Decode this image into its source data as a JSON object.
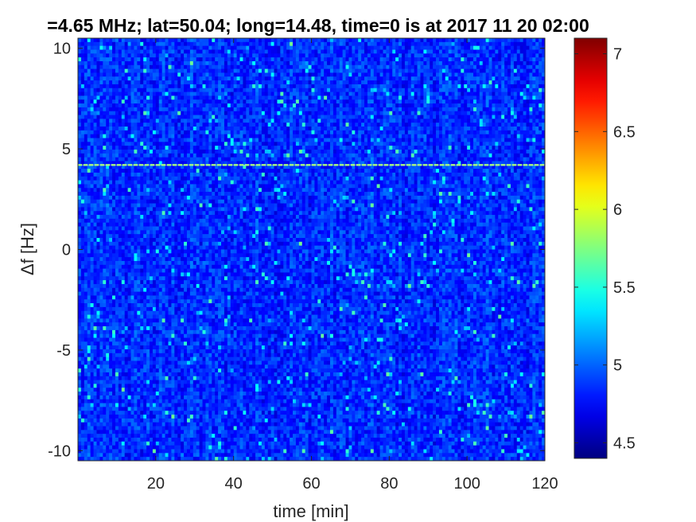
{
  "chart_data": {
    "type": "heatmap",
    "title": "=4.65 MHz;  lat=50.04; long=14.48, time=0 is at 2017 11 20 02:00",
    "xlabel": "time [min]",
    "ylabel": "Δf [Hz]",
    "xlim": [
      0,
      120
    ],
    "ylim": [
      -10.5,
      10.5
    ],
    "xticks": [
      20,
      40,
      60,
      80,
      100,
      120
    ],
    "yticks": [
      10,
      5,
      0,
      -5,
      -10
    ],
    "colorbar": {
      "colormap": "jet",
      "clim": [
        4.4,
        7.1
      ],
      "ticks": [
        7,
        6.5,
        6,
        5.5,
        5,
        4.5
      ],
      "colors": [
        "#00008f",
        "#0000ff",
        "#00ffff",
        "#ffff00",
        "#ff0000",
        "#800000"
      ]
    },
    "features": [
      {
        "label": "carrier line",
        "delta_f_hz": 4.2,
        "time_min": [
          0,
          120
        ],
        "level": 5.8
      }
    ],
    "background_level": 4.85
  }
}
